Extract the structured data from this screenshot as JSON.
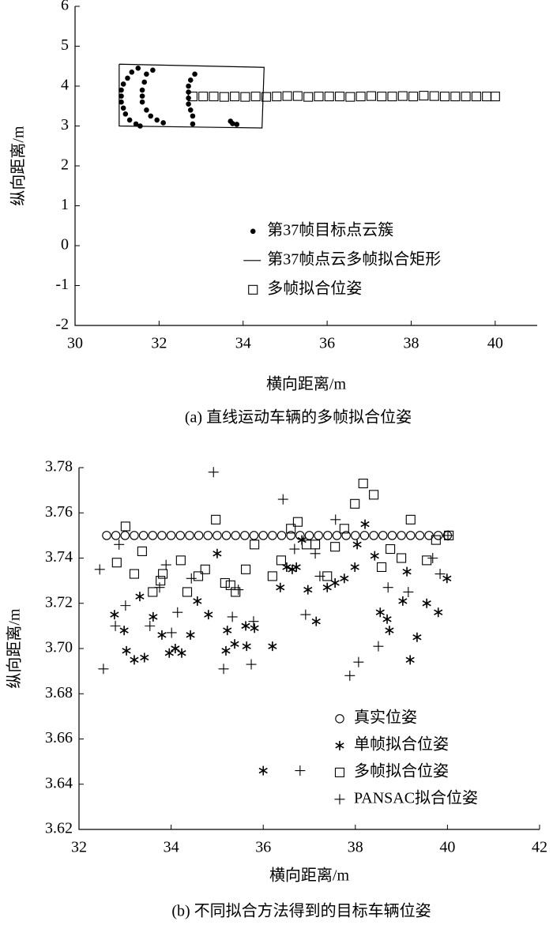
{
  "chart_data": [
    {
      "type": "scatter",
      "xlabel": "横向距离/m",
      "ylabel": "纵向距离/m",
      "caption": "(a) 直线运动车辆的多帧拟合位姿",
      "xlim": [
        30,
        41
      ],
      "ylim": [
        -2,
        6
      ],
      "xticks": [
        30,
        32,
        34,
        36,
        38,
        40
      ],
      "yticks": [
        -2,
        -1,
        0,
        1,
        2,
        3,
        4,
        5,
        6
      ],
      "legend": "center",
      "series": [
        {
          "name": "第37帧目标点云簇",
          "marker": "dot",
          "color": "#000000",
          "x": [
            31.5,
            31.35,
            31.25,
            31.15,
            31.1,
            31.1,
            31.1,
            31.15,
            31.2,
            31.3,
            31.45,
            31.55,
            31.85,
            31.7,
            31.65,
            31.6,
            31.6,
            31.6,
            31.7,
            31.8,
            31.95,
            32.1,
            32.85,
            32.75,
            32.7,
            32.7,
            32.7,
            32.7,
            32.75,
            32.8,
            32.8,
            33.7,
            33.75,
            33.85
          ],
          "values": [
            4.45,
            4.35,
            4.2,
            4.05,
            3.9,
            3.75,
            3.6,
            3.45,
            3.3,
            3.15,
            3.05,
            3.0,
            4.4,
            4.3,
            4.1,
            3.9,
            3.75,
            3.6,
            3.4,
            3.25,
            3.15,
            3.08,
            4.3,
            4.15,
            4.0,
            3.85,
            3.7,
            3.55,
            3.4,
            3.25,
            3.05,
            3.12,
            3.06,
            3.04
          ]
        },
        {
          "name": "第37帧点云多帧拟合矩形",
          "marker": "line",
          "color": "#000000",
          "x": [
            31.05,
            34.5,
            34.45,
            31.05,
            31.05
          ],
          "values": [
            4.55,
            4.47,
            2.95,
            3.0,
            4.55
          ]
        },
        {
          "name": "多帧拟合位姿",
          "marker": "square",
          "color": "#000000",
          "x": [
            32.8,
            33.05,
            33.3,
            33.55,
            33.8,
            34.05,
            34.3,
            34.55,
            34.8,
            35.05,
            35.3,
            35.55,
            35.8,
            36.05,
            36.3,
            36.55,
            36.8,
            37.05,
            37.3,
            37.55,
            37.8,
            38.05,
            38.3,
            38.55,
            38.8,
            39.05,
            39.3,
            39.55,
            39.8,
            40.0
          ],
          "values": [
            3.74,
            3.74,
            3.74,
            3.73,
            3.74,
            3.73,
            3.74,
            3.73,
            3.74,
            3.75,
            3.75,
            3.73,
            3.74,
            3.74,
            3.74,
            3.73,
            3.74,
            3.75,
            3.74,
            3.74,
            3.75,
            3.74,
            3.76,
            3.75,
            3.74,
            3.74,
            3.74,
            3.74,
            3.74,
            3.74
          ]
        }
      ]
    },
    {
      "type": "scatter",
      "xlabel": "横向距离/m",
      "ylabel": "纵向距离/m",
      "caption": "(b) 不同拟合方法得到的目标车辆位姿",
      "xlim": [
        32,
        42
      ],
      "ylim": [
        3.62,
        3.78
      ],
      "xticks": [
        32,
        34,
        36,
        38,
        40,
        42
      ],
      "yticks": [
        3.62,
        3.64,
        3.66,
        3.68,
        {
          "value": 3.7,
          "label": "3.70"
        },
        3.72,
        3.74,
        3.76,
        3.78
      ],
      "legend": "lower right",
      "series": [
        {
          "name": "真实位姿",
          "marker": "circle",
          "color": "#000000",
          "x": [
            32.6,
            32.8,
            33.0,
            33.2,
            33.4,
            33.6,
            33.8,
            34.0,
            34.2,
            34.4,
            34.6,
            34.8,
            35.0,
            35.2,
            35.4,
            35.6,
            35.8,
            36.0,
            36.2,
            36.4,
            36.6,
            36.8,
            37.0,
            37.2,
            37.4,
            37.6,
            37.8,
            38.0,
            38.2,
            38.4,
            38.6,
            38.8,
            39.0,
            39.2,
            39.4,
            39.6,
            39.8,
            40.0
          ],
          "values": [
            3.75,
            3.75,
            3.75,
            3.75,
            3.75,
            3.75,
            3.75,
            3.75,
            3.75,
            3.75,
            3.75,
            3.75,
            3.75,
            3.75,
            3.75,
            3.75,
            3.75,
            3.75,
            3.75,
            3.75,
            3.75,
            3.75,
            3.75,
            3.75,
            3.75,
            3.75,
            3.75,
            3.75,
            3.75,
            3.75,
            3.75,
            3.75,
            3.75,
            3.75,
            3.75,
            3.75,
            3.75,
            3.75
          ]
        },
        {
          "name": "单帧拟合位姿",
          "marker": "star",
          "color": "#000000",
          "x": [
            32.77,
            32.98,
            33.03,
            33.2,
            33.32,
            33.42,
            33.61,
            33.8,
            33.96,
            34.09,
            34.23,
            34.42,
            34.57,
            34.81,
            35.0,
            35.19,
            35.22,
            35.38,
            35.62,
            35.64,
            35.81,
            36.0,
            36.2,
            36.37,
            36.51,
            36.63,
            36.72,
            36.84,
            36.97,
            37.15,
            37.39,
            37.56,
            37.76,
            37.99,
            38.04,
            38.21,
            38.42,
            38.54,
            38.69,
            38.74,
            39.03,
            39.12,
            39.19,
            39.34,
            39.55,
            39.8,
            39.99
          ],
          "values": [
            3.715,
            3.708,
            3.699,
            3.695,
            3.723,
            3.696,
            3.714,
            3.706,
            3.698,
            3.7,
            3.698,
            3.706,
            3.721,
            3.715,
            3.742,
            3.699,
            3.708,
            3.702,
            3.71,
            3.701,
            3.709,
            3.646,
            3.701,
            3.727,
            3.736,
            3.735,
            3.736,
            3.748,
            3.726,
            3.712,
            3.727,
            3.729,
            3.731,
            3.736,
            3.746,
            3.755,
            3.741,
            3.716,
            3.713,
            3.708,
            3.721,
            3.734,
            3.695,
            3.705,
            3.72,
            3.716,
            3.731
          ]
        },
        {
          "name": "多帧拟合位姿",
          "marker": "square",
          "color": "#000000",
          "x": [
            32.82,
            33.01,
            33.2,
            33.37,
            33.6,
            33.77,
            33.82,
            34.21,
            34.35,
            34.59,
            34.74,
            34.97,
            35.17,
            35.29,
            35.4,
            35.62,
            35.81,
            36.2,
            36.39,
            36.6,
            36.75,
            36.94,
            37.13,
            37.39,
            37.56,
            37.76,
            37.99,
            38.17,
            38.4,
            38.57,
            38.76,
            39.0,
            39.2,
            39.55,
            39.75,
            40.03
          ],
          "values": [
            3.738,
            3.754,
            3.733,
            3.743,
            3.725,
            3.73,
            3.733,
            3.739,
            3.725,
            3.732,
            3.735,
            3.757,
            3.729,
            3.728,
            3.725,
            3.735,
            3.746,
            3.732,
            3.739,
            3.753,
            3.756,
            3.746,
            3.746,
            3.732,
            3.745,
            3.753,
            3.764,
            3.773,
            3.768,
            3.736,
            3.744,
            3.74,
            3.757,
            3.739,
            3.748,
            3.75
          ]
        },
        {
          "name": "PANSAC拟合位姿",
          "marker": "plus",
          "color": "#000000",
          "x": [
            32.45,
            32.53,
            32.79,
            32.87,
            33.01,
            33.54,
            33.75,
            33.89,
            34.01,
            34.14,
            34.44,
            34.92,
            35.14,
            35.33,
            35.46,
            35.74,
            35.79,
            36.43,
            36.68,
            36.8,
            36.92,
            37.13,
            37.23,
            37.57,
            37.88,
            38.07,
            38.5,
            38.71,
            39.15,
            39.68,
            39.84,
            40.01
          ],
          "values": [
            3.735,
            3.691,
            3.71,
            3.746,
            3.719,
            3.71,
            3.727,
            3.737,
            3.707,
            3.716,
            3.731,
            3.778,
            3.691,
            3.714,
            3.726,
            3.693,
            3.712,
            3.766,
            3.744,
            3.646,
            3.715,
            3.742,
            3.732,
            3.757,
            3.688,
            3.694,
            3.701,
            3.727,
            3.725,
            3.74,
            3.733,
            3.75
          ]
        }
      ]
    }
  ]
}
